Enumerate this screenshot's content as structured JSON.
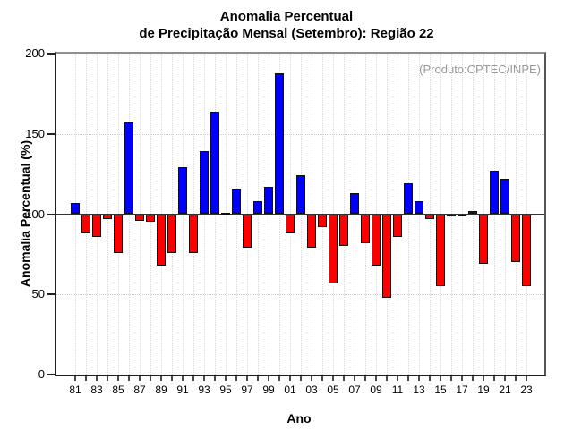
{
  "chart_data": {
    "type": "bar",
    "title_line1": "Anomalia Percentual",
    "title_line2": "de Precipitação Mensal (Setembro): Região 22",
    "annotation": "(Produto:CPTEC/INPE)",
    "xlabel": "Ano",
    "ylabel": "Anomalia Percentual (%)",
    "ylim": [
      0,
      200
    ],
    "yticks": [
      0,
      50,
      100,
      150,
      200
    ],
    "baseline": 100,
    "h_dotted_gridlines": [
      50,
      150
    ],
    "v_dotted_gridlines": "every-year",
    "x_label_step": 2,
    "legend": "none",
    "colors": {
      "above_baseline": "#0000fa",
      "below_baseline": "#fa0000",
      "bar_outline": "#101010",
      "baseline_line": "#333333",
      "annotation_text": "#999999",
      "grid_dotted": "#d8d8d8"
    },
    "categories": [
      "81",
      "82",
      "83",
      "84",
      "85",
      "86",
      "87",
      "88",
      "89",
      "90",
      "91",
      "92",
      "93",
      "94",
      "95",
      "96",
      "97",
      "98",
      "99",
      "00",
      "01",
      "02",
      "03",
      "04",
      "05",
      "06",
      "07",
      "08",
      "09",
      "10",
      "11",
      "12",
      "13",
      "14",
      "15",
      "16",
      "17",
      "18",
      "19",
      "20",
      "21",
      "22",
      "23"
    ],
    "values": [
      107,
      88,
      86,
      97,
      76,
      157,
      96,
      95,
      68,
      76,
      129,
      76,
      139,
      164,
      101,
      116,
      79,
      108,
      117,
      188,
      88,
      124,
      79,
      92,
      57,
      80,
      113,
      82,
      68,
      48,
      86,
      119,
      108,
      97,
      55,
      99,
      100,
      102,
      69,
      127,
      122,
      70,
      55
    ]
  }
}
